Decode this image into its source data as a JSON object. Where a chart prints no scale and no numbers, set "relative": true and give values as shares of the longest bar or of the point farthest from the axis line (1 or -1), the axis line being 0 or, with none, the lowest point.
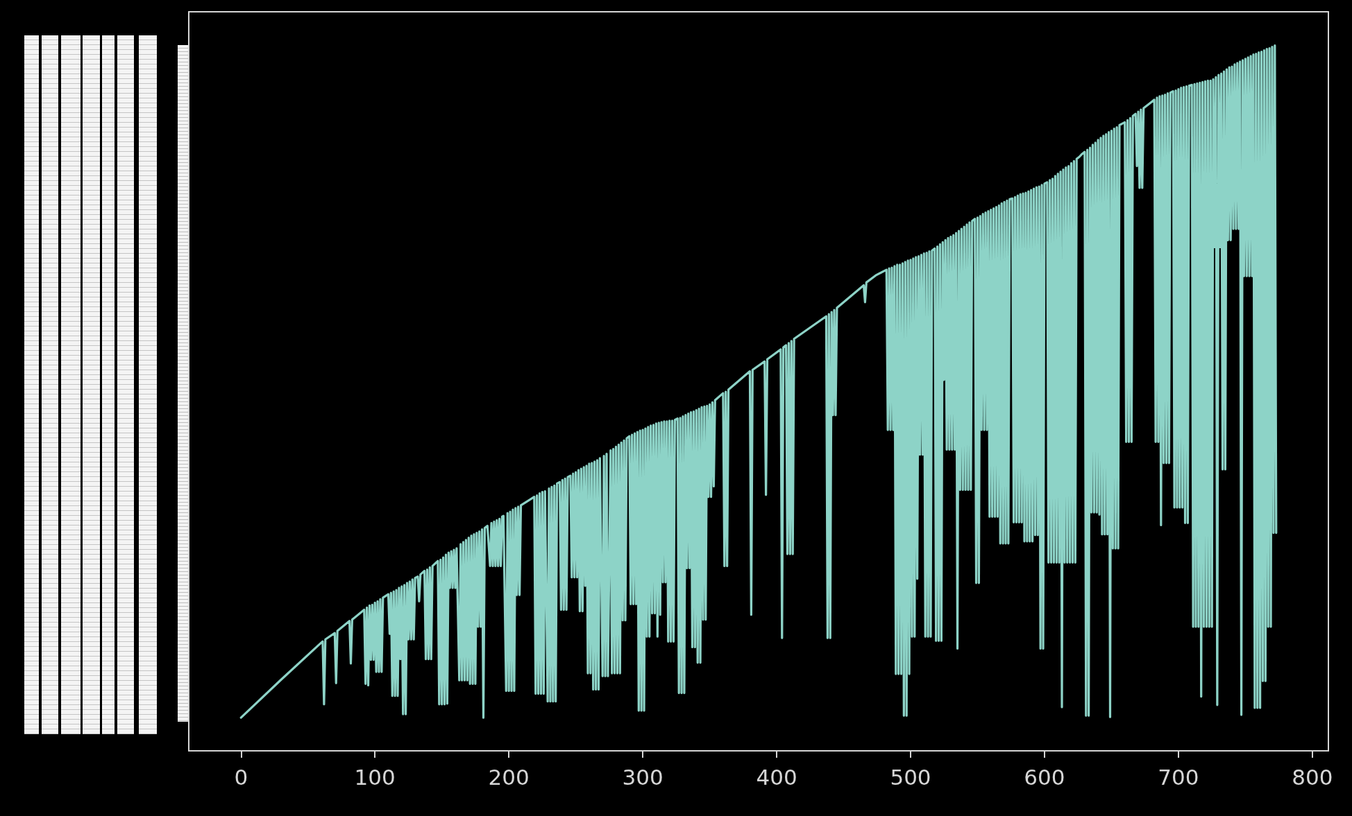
{
  "chart_data": {
    "type": "line",
    "relative": true,
    "color": "#8dd3c7",
    "xlim": [
      -39,
      812
    ],
    "xticks": [
      0,
      100,
      200,
      300,
      400,
      500,
      600,
      700,
      800
    ],
    "x": [
      0,
      30,
      58,
      61,
      62,
      63,
      70,
      71,
      72,
      81,
      82,
      83,
      92,
      93,
      94,
      95,
      96,
      97,
      98,
      99,
      100,
      101,
      102,
      103,
      104,
      105,
      106,
      110,
      111,
      112,
      113,
      114,
      115,
      116,
      117,
      118,
      119,
      120,
      121,
      122,
      123,
      124,
      125,
      126,
      127,
      128,
      129,
      130,
      132,
      133,
      134,
      137,
      138,
      139,
      140,
      141,
      142,
      143,
      147,
      148,
      149,
      150,
      151,
      152,
      153,
      154,
      155,
      156,
      157,
      158,
      159,
      160,
      161,
      163,
      164,
      165,
      166,
      167,
      168,
      169,
      170,
      171,
      172,
      173,
      174,
      175,
      176,
      177,
      178,
      179,
      180,
      181,
      182,
      184,
      186,
      187,
      188,
      189,
      190,
      191,
      192,
      193,
      194,
      195,
      196,
      198,
      199,
      200,
      201,
      202,
      203,
      204,
      205,
      206,
      207,
      208,
      209,
      219,
      220,
      221,
      222,
      223,
      224,
      225,
      226,
      227,
      229,
      230,
      231,
      232,
      233,
      234,
      235,
      236,
      238,
      239,
      240,
      241,
      242,
      243,
      244,
      246,
      247,
      248,
      249,
      250,
      251,
      252,
      253,
      254,
      255,
      256,
      257,
      258,
      259,
      260,
      261,
      262,
      263,
      264,
      265,
      266,
      267,
      268,
      270,
      271,
      272,
      273,
      274,
      276,
      277,
      278,
      279,
      280,
      281,
      282,
      283,
      284,
      285,
      286,
      287,
      288,
      290,
      291,
      292,
      293,
      294,
      295,
      296,
      297,
      298,
      299,
      300,
      301,
      302,
      303,
      304,
      305,
      306,
      307,
      308,
      309,
      310,
      311,
      312,
      313,
      314,
      315,
      316,
      317,
      318,
      319,
      320,
      321,
      322,
      323,
      324,
      326,
      327,
      328,
      329,
      330,
      331,
      332,
      333,
      334,
      335,
      336,
      337,
      338,
      339,
      340,
      341,
      342,
      343,
      344,
      345,
      346,
      347,
      348,
      349,
      350,
      351,
      352,
      353,
      354,
      360,
      361,
      362,
      363,
      364,
      380,
      381,
      382,
      391,
      392,
      393,
      403,
      404,
      405,
      407,
      408,
      409,
      410,
      411,
      412,
      413,
      437,
      438,
      439,
      440,
      441,
      442,
      443,
      444,
      445,
      465,
      466,
      467,
      474,
      480,
      482,
      483,
      484,
      485,
      486,
      487,
      488,
      489,
      490,
      491,
      492,
      493,
      494,
      495,
      496,
      497,
      498,
      499,
      500,
      501,
      502,
      503,
      504,
      505,
      506,
      507,
      508,
      509,
      510,
      511,
      512,
      513,
      514,
      515,
      516,
      518,
      519,
      520,
      521,
      522,
      523,
      524,
      525,
      526,
      527,
      528,
      529,
      530,
      531,
      532,
      533,
      534,
      535,
      536,
      537,
      538,
      539,
      540,
      541,
      542,
      543,
      544,
      545,
      546,
      548,
      549,
      550,
      551,
      552,
      553,
      554,
      555,
      556,
      557,
      558,
      559,
      560,
      561,
      562,
      563,
      564,
      565,
      566,
      567,
      568,
      569,
      570,
      571,
      572,
      573,
      574,
      576,
      577,
      578,
      579,
      580,
      581,
      582,
      583,
      584,
      585,
      586,
      587,
      588,
      589,
      590,
      591,
      592,
      593,
      594,
      595,
      596,
      597,
      598,
      599,
      600,
      602,
      603,
      604,
      605,
      606,
      607,
      608,
      609,
      610,
      611,
      612,
      613,
      614,
      615,
      616,
      617,
      618,
      619,
      620,
      621,
      622,
      623,
      624,
      626,
      628,
      630,
      631,
      632,
      633,
      634,
      635,
      636,
      637,
      638,
      639,
      640,
      641,
      642,
      643,
      644,
      645,
      646,
      647,
      648,
      649,
      650,
      651,
      652,
      653,
      654,
      655,
      656,
      658,
      660,
      661,
      662,
      663,
      664,
      665,
      666,
      668,
      669,
      670,
      671,
      672,
      673,
      674,
      680,
      682,
      683,
      684,
      685,
      686,
      687,
      688,
      689,
      690,
      691,
      692,
      693,
      694,
      696,
      697,
      698,
      699,
      700,
      701,
      702,
      703,
      704,
      705,
      706,
      707,
      708,
      710,
      711,
      712,
      713,
      714,
      715,
      716,
      717,
      718,
      719,
      720,
      721,
      722,
      723,
      724,
      725,
      726,
      727,
      728,
      729,
      730,
      731,
      732,
      733,
      734,
      735,
      736,
      737,
      738,
      739,
      740,
      741,
      742,
      743,
      744,
      745,
      746,
      747,
      748,
      749,
      750,
      751,
      752,
      753,
      754,
      755,
      756,
      757,
      758,
      759,
      760,
      761,
      762,
      763,
      764,
      765,
      766,
      767,
      768,
      769,
      770,
      771,
      772,
      773
    ],
    "values": [
      0.047,
      0.101,
      0.15,
      0.155,
      0.066,
      0.158,
      0.167,
      0.096,
      0.17,
      0.184,
      0.124,
      0.186,
      0.2,
      0.095,
      0.203,
      0.093,
      0.206,
      0.129,
      0.207,
      0.129,
      0.21,
      0.112,
      0.212,
      0.112,
      0.215,
      0.112,
      0.217,
      0.222,
      0.166,
      0.224,
      0.078,
      0.226,
      0.078,
      0.228,
      0.078,
      0.231,
      0.13,
      0.233,
      0.052,
      0.235,
      0.052,
      0.238,
      0.158,
      0.24,
      0.158,
      0.243,
      0.158,
      0.245,
      0.247,
      0.212,
      0.25,
      0.255,
      0.13,
      0.257,
      0.13,
      0.26,
      0.13,
      0.262,
      0.269,
      0.066,
      0.271,
      0.066,
      0.274,
      0.066,
      0.278,
      0.067,
      0.281,
      0.231,
      0.283,
      0.231,
      0.285,
      0.231,
      0.287,
      0.1,
      0.293,
      0.1,
      0.296,
      0.1,
      0.299,
      0.1,
      0.302,
      0.095,
      0.305,
      0.095,
      0.307,
      0.095,
      0.309,
      0.176,
      0.311,
      0.176,
      0.314,
      0.047,
      0.316,
      0.319,
      0.262,
      0.323,
      0.262,
      0.325,
      0.262,
      0.327,
      0.262,
      0.329,
      0.262,
      0.332,
      0.333,
      0.085,
      0.337,
      0.085,
      0.339,
      0.085,
      0.342,
      0.085,
      0.344,
      0.221,
      0.346,
      0.221,
      0.348,
      0.36,
      0.081,
      0.362,
      0.081,
      0.365,
      0.081,
      0.367,
      0.081,
      0.368,
      0.07,
      0.372,
      0.07,
      0.374,
      0.07,
      0.376,
      0.07,
      0.379,
      0.381,
      0.2,
      0.384,
      0.2,
      0.386,
      0.2,
      0.388,
      0.39,
      0.246,
      0.393,
      0.246,
      0.395,
      0.246,
      0.398,
      0.198,
      0.4,
      0.198,
      0.402,
      0.234,
      0.404,
      0.11,
      0.407,
      0.11,
      0.408,
      0.087,
      0.41,
      0.087,
      0.412,
      0.087,
      0.415,
      0.106,
      0.418,
      0.106,
      0.421,
      0.106,
      0.426,
      0.11,
      0.428,
      0.11,
      0.431,
      0.11,
      0.434,
      0.11,
      0.437,
      0.185,
      0.44,
      0.185,
      0.443,
      0.446,
      0.208,
      0.448,
      0.208,
      0.45,
      0.208,
      0.452,
      0.057,
      0.454,
      0.057,
      0.455,
      0.057,
      0.457,
      0.162,
      0.459,
      0.162,
      0.461,
      0.195,
      0.462,
      0.195,
      0.464,
      0.162,
      0.465,
      0.193,
      0.466,
      0.239,
      0.467,
      0.239,
      0.467,
      0.155,
      0.468,
      0.155,
      0.468,
      0.155,
      0.469,
      0.471,
      0.082,
      0.472,
      0.082,
      0.474,
      0.082,
      0.476,
      0.259,
      0.478,
      0.259,
      0.48,
      0.147,
      0.481,
      0.147,
      0.483,
      0.125,
      0.485,
      0.125,
      0.487,
      0.186,
      0.488,
      0.186,
      0.489,
      0.36,
      0.491,
      0.36,
      0.494,
      0.375,
      0.497,
      0.507,
      0.262,
      0.509,
      0.262,
      0.512,
      0.538,
      0.193,
      0.54,
      0.552,
      0.363,
      0.555,
      0.569,
      0.16,
      0.572,
      0.575,
      0.279,
      0.578,
      0.279,
      0.581,
      0.279,
      0.584,
      0.616,
      0.16,
      0.619,
      0.16,
      0.622,
      0.476,
      0.625,
      0.476,
      0.628,
      0.66,
      0.636,
      0.664,
      0.674,
      0.68,
      0.682,
      0.455,
      0.684,
      0.455,
      0.685,
      0.455,
      0.687,
      0.109,
      0.689,
      0.109,
      0.689,
      0.109,
      0.691,
      0.05,
      0.693,
      0.05,
      0.695,
      0.109,
      0.696,
      0.162,
      0.698,
      0.162,
      0.7,
      0.244,
      0.701,
      0.42,
      0.703,
      0.42,
      0.705,
      0.162,
      0.706,
      0.162,
      0.708,
      0.162,
      0.709,
      0.712,
      0.156,
      0.715,
      0.156,
      0.718,
      0.156,
      0.721,
      0.526,
      0.724,
      0.427,
      0.727,
      0.427,
      0.729,
      0.427,
      0.731,
      0.427,
      0.734,
      0.145,
      0.737,
      0.37,
      0.74,
      0.37,
      0.743,
      0.37,
      0.746,
      0.37,
      0.749,
      0.37,
      0.751,
      0.754,
      0.238,
      0.756,
      0.238,
      0.758,
      0.455,
      0.761,
      0.455,
      0.763,
      0.455,
      0.765,
      0.332,
      0.767,
      0.332,
      0.769,
      0.332,
      0.771,
      0.332,
      0.773,
      0.294,
      0.776,
      0.294,
      0.778,
      0.294,
      0.78,
      0.294,
      0.782,
      0.783,
      0.324,
      0.785,
      0.324,
      0.787,
      0.324,
      0.789,
      0.324,
      0.79,
      0.297,
      0.791,
      0.297,
      0.793,
      0.297,
      0.795,
      0.297,
      0.797,
      0.306,
      0.799,
      0.306,
      0.8,
      0.145,
      0.802,
      0.145,
      0.804,
      0.806,
      0.267,
      0.809,
      0.267,
      0.811,
      0.267,
      0.815,
      0.267,
      0.818,
      0.267,
      0.821,
      0.062,
      0.824,
      0.267,
      0.827,
      0.267,
      0.829,
      0.267,
      0.833,
      0.267,
      0.836,
      0.267,
      0.839,
      0.842,
      0.846,
      0.849,
      0.05,
      0.852,
      0.05,
      0.855,
      0.338,
      0.859,
      0.338,
      0.862,
      0.338,
      0.866,
      0.335,
      0.869,
      0.307,
      0.872,
      0.307,
      0.874,
      0.307,
      0.877,
      0.048,
      0.879,
      0.287,
      0.882,
      0.287,
      0.884,
      0.287,
      0.887,
      0.889,
      0.891,
      0.438,
      0.894,
      0.438,
      0.897,
      0.438,
      0.9,
      0.903,
      0.829,
      0.906,
      0.798,
      0.909,
      0.798,
      0.911,
      0.92,
      0.923,
      0.438,
      0.926,
      0.438,
      0.928,
      0.32,
      0.929,
      0.408,
      0.93,
      0.408,
      0.932,
      0.408,
      0.933,
      0.935,
      0.345,
      0.936,
      0.345,
      0.938,
      0.345,
      0.94,
      0.345,
      0.941,
      0.323,
      0.942,
      0.323,
      0.943,
      0.944,
      0.176,
      0.945,
      0.176,
      0.946,
      0.176,
      0.947,
      0.077,
      0.948,
      0.176,
      0.949,
      0.176,
      0.95,
      0.176,
      0.95,
      0.176,
      0.952,
      0.714,
      0.955,
      0.065,
      0.958,
      0.714,
      0.96,
      0.399,
      0.963,
      0.399,
      0.966,
      0.724,
      0.969,
      0.724,
      0.97,
      0.74,
      0.973,
      0.74,
      0.975,
      0.74,
      0.977,
      0.051,
      0.979,
      0.673,
      0.981,
      0.673,
      0.983,
      0.673,
      0.985,
      0.673,
      0.987,
      0.061,
      0.988,
      0.061,
      0.99,
      0.061,
      0.991,
      0.099,
      0.993,
      0.099,
      0.995,
      0.176,
      0.996,
      0.176,
      0.998,
      0.309,
      1,
      0.309
    ]
  }
}
